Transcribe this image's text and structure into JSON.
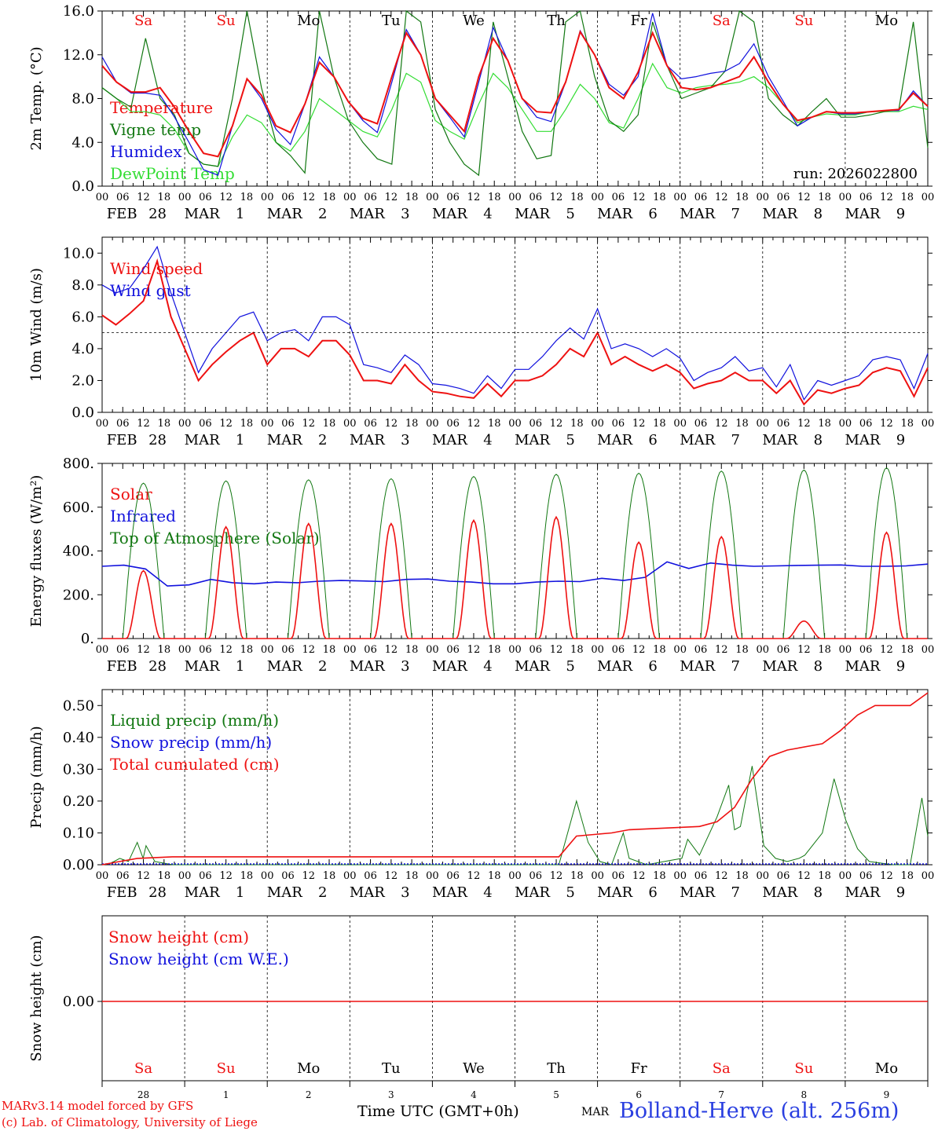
{
  "colors": {
    "red": "#ee1111",
    "green": "#117711",
    "blue": "#1111dd",
    "lightgreen": "#33dd33"
  },
  "days": [
    "Sa",
    "Su",
    "Mo",
    "Tu",
    "We",
    "Th",
    "Fr",
    "Sa",
    "Su",
    "Mo"
  ],
  "weekend_days": [
    0,
    1,
    7,
    8
  ],
  "day_axis_labels": [
    [
      "FEB",
      "28"
    ],
    [
      "MAR",
      "1"
    ],
    [
      "MAR",
      "2"
    ],
    [
      "MAR",
      "3"
    ],
    [
      "MAR",
      "4"
    ],
    [
      "MAR",
      "5"
    ],
    [
      "MAR",
      "6"
    ],
    [
      "MAR",
      "7"
    ],
    [
      "MAR",
      "8"
    ],
    [
      "MAR",
      "9"
    ]
  ],
  "hour_ticks": [
    "00",
    "06",
    "12",
    "18"
  ],
  "run_label": "run: 2026022800",
  "footer": {
    "model_line1": "MARv3.14 model forced by GFS",
    "model_line2": "(c) Lab. of Climatology, University of Liege",
    "xlabel": "Time UTC (GMT+0h)",
    "month": "MAR",
    "station": "Bolland-Herve (alt. 256m)",
    "day_numbers": [
      "28",
      "1",
      "2",
      "3",
      "4",
      "5",
      "6",
      "7",
      "8",
      "9"
    ]
  },
  "chart_data": [
    {
      "type": "line",
      "id": "temp",
      "ylabel": "2m Temp. (°C)",
      "ylim": [
        0,
        16
      ],
      "yticks": [
        "0.0",
        "4.0",
        "8.0",
        "12.0",
        "16.0"
      ],
      "series": [
        {
          "name": "Temperature",
          "color": "#ee1111",
          "values": [
            11,
            9.5,
            8.6,
            8.6,
            9,
            7.2,
            5,
            3,
            2.7,
            5.5,
            9.8,
            8.3,
            5.5,
            4.9,
            7.5,
            11.3,
            10,
            7.7,
            6.2,
            5.7,
            10,
            14,
            12,
            8,
            6.5,
            5,
            10,
            13.5,
            11.5,
            8,
            6.8,
            6.7,
            9.5,
            14.1,
            12,
            9,
            8,
            10.4,
            14,
            11,
            9,
            8.8,
            9,
            9.5,
            10,
            11.8,
            9.5,
            7.5,
            6,
            6.3,
            6.8,
            6.7,
            6.7,
            6.8,
            6.9,
            7,
            8.5,
            7.3
          ]
        },
        {
          "name": "Vigne temp",
          "color": "#117711",
          "values": [
            9,
            8,
            7.2,
            13.5,
            8,
            6.5,
            3,
            2,
            1.8,
            8,
            16,
            9,
            4,
            2.8,
            1.2,
            16,
            10,
            6,
            4,
            2.5,
            2,
            16,
            15,
            7,
            4,
            2,
            1,
            15,
            10,
            5,
            2.5,
            2.8,
            15,
            16,
            10,
            6,
            5,
            6.5,
            15,
            11,
            8,
            8.5,
            9,
            10.5,
            16,
            15,
            8,
            6.5,
            5.5,
            6.8,
            8,
            6.3,
            6.3,
            6.5,
            6.8,
            7,
            15,
            3.5
          ]
        },
        {
          "name": "Humidex",
          "color": "#1111dd",
          "values": [
            11.8,
            9.5,
            8.5,
            8.5,
            8.3,
            6.3,
            4,
            1.5,
            1,
            5.5,
            9.8,
            8,
            5.2,
            3.8,
            7.5,
            11.8,
            10,
            7.7,
            6,
            4.9,
            9.5,
            14.3,
            12,
            8,
            6.3,
            4.5,
            9.5,
            14.5,
            11.5,
            8,
            6.3,
            5.9,
            9.5,
            14.2,
            12,
            9.3,
            8.3,
            10,
            15.8,
            11,
            9.8,
            10,
            10.3,
            10.5,
            11.2,
            13,
            10,
            7.8,
            5.5,
            6.3,
            6.8,
            6.6,
            6.6,
            6.8,
            6.9,
            6.9,
            8.7,
            7.3
          ]
        },
        {
          "name": "DewPoint Temp",
          "color": "#33dd33",
          "values": [
            9,
            8,
            6.8,
            6.8,
            6.5,
            5.2,
            3,
            2,
            1.8,
            4.5,
            6.5,
            5.8,
            4,
            3.2,
            5,
            8,
            7,
            6,
            5,
            4.5,
            7,
            10.3,
            9.5,
            6,
            5,
            4.3,
            7.5,
            10.3,
            9,
            7,
            5,
            5,
            7,
            9.3,
            8,
            5.8,
            5.3,
            8,
            11.2,
            9,
            8.5,
            9,
            9.2,
            9.3,
            9.5,
            10,
            9,
            7.5,
            5.8,
            6.3,
            6.6,
            6.5,
            6.5,
            6.8,
            6.8,
            6.8,
            7.3,
            7
          ]
        }
      ]
    },
    {
      "type": "line",
      "id": "wind",
      "ylabel": "10m Wind (m/s)",
      "ylim": [
        0,
        11
      ],
      "yticks": [
        "0.0",
        "2.0",
        "4.0",
        "6.0",
        "8.0",
        "10.0"
      ],
      "ref_line": 5,
      "series": [
        {
          "name": "Wind speed",
          "color": "#ee1111",
          "values": [
            6.1,
            5.5,
            6.2,
            7,
            9.5,
            6,
            4,
            2,
            3,
            3.8,
            4.5,
            5,
            3,
            4,
            4,
            3.5,
            4.5,
            4.5,
            3.6,
            2,
            2,
            1.8,
            3,
            2,
            1.3,
            1.2,
            1,
            0.9,
            1.8,
            1,
            2,
            2,
            2.3,
            3,
            4,
            3.5,
            5,
            3,
            3.5,
            3,
            2.6,
            3,
            2.5,
            1.5,
            1.8,
            2,
            2.5,
            2,
            2,
            1.2,
            2,
            0.5,
            1.4,
            1.2,
            1.5,
            1.7,
            2.5,
            2.8,
            2.6,
            1,
            2.8
          ]
        },
        {
          "name": "Wind gust",
          "color": "#1111dd",
          "values": [
            8,
            7.5,
            7.8,
            9,
            10.4,
            7.5,
            5,
            2.5,
            4,
            5,
            6,
            6.3,
            4.5,
            5,
            5.2,
            4.5,
            6,
            6,
            5.5,
            3,
            2.8,
            2.5,
            3.6,
            3,
            1.8,
            1.7,
            1.5,
            1.2,
            2.3,
            1.5,
            2.7,
            2.7,
            3.5,
            4.5,
            5.3,
            4.6,
            6.5,
            4,
            4.3,
            4,
            3.5,
            4,
            3.4,
            2,
            2.5,
            2.8,
            3.5,
            2.6,
            2.8,
            1.6,
            3,
            0.8,
            2,
            1.7,
            2,
            2.3,
            3.3,
            3.5,
            3.3,
            1.5,
            3.7
          ]
        }
      ]
    },
    {
      "type": "line",
      "id": "energy",
      "ylabel": "Energy fluxes (W/m²)",
      "ylim": [
        0,
        800
      ],
      "yticks": [
        "0.",
        "200.",
        "400.",
        "600.",
        "800."
      ],
      "solar_peaks": [
        310,
        510,
        525,
        525,
        540,
        555,
        440,
        465,
        80,
        485
      ],
      "toa_peaks": [
        710,
        720,
        725,
        730,
        740,
        750,
        755,
        765,
        770,
        780
      ],
      "infrared": [
        330,
        335,
        318,
        240,
        245,
        270,
        255,
        250,
        258,
        255,
        262,
        265,
        263,
        260,
        270,
        272,
        262,
        258,
        250,
        250,
        258,
        262,
        260,
        275,
        265,
        280,
        350,
        320,
        345,
        335,
        330,
        332,
        334,
        335,
        336,
        330,
        330,
        332,
        340
      ],
      "series": [
        {
          "name": "Solar",
          "color": "#ee1111"
        },
        {
          "name": "Infrared",
          "color": "#1111dd"
        },
        {
          "name": "Top of Atmosphere (Solar)",
          "color": "#117711"
        }
      ]
    },
    {
      "type": "line",
      "id": "precip",
      "ylabel": "Precip (mm/h)",
      "ylim": [
        0,
        0.55
      ],
      "yticks": [
        "0.00",
        "0.10",
        "0.20",
        "0.30",
        "0.40",
        "0.50"
      ],
      "liquid": [
        [
          0,
          0
        ],
        [
          3,
          0.005
        ],
        [
          6,
          0.02
        ],
        [
          9,
          0.01
        ],
        [
          12,
          0.07
        ],
        [
          14,
          0.02
        ],
        [
          15,
          0.06
        ],
        [
          18,
          0.01
        ],
        [
          24,
          0
        ],
        [
          150,
          0
        ],
        [
          156,
          0
        ],
        [
          162,
          0.2
        ],
        [
          166,
          0.07
        ],
        [
          170,
          0.01
        ],
        [
          174,
          0.0
        ],
        [
          178,
          0.1
        ],
        [
          180,
          0.02
        ],
        [
          186,
          0
        ],
        [
          192,
          0.01
        ],
        [
          198,
          0.02
        ],
        [
          200,
          0.08
        ],
        [
          204,
          0.03
        ],
        [
          210,
          0.15
        ],
        [
          214,
          0.25
        ],
        [
          216,
          0.11
        ],
        [
          218,
          0.12
        ],
        [
          222,
          0.31
        ],
        [
          226,
          0.06
        ],
        [
          230,
          0.02
        ],
        [
          234,
          0.01
        ],
        [
          238,
          0.02
        ],
        [
          240,
          0.03
        ],
        [
          246,
          0.1
        ],
        [
          250,
          0.27
        ],
        [
          254,
          0.14
        ],
        [
          258,
          0.05
        ],
        [
          262,
          0.01
        ],
        [
          270,
          0
        ],
        [
          276,
          0
        ],
        [
          280,
          0.21
        ],
        [
          282,
          0.09
        ]
      ],
      "cumulative": [
        [
          0,
          0
        ],
        [
          6,
          0.01
        ],
        [
          12,
          0.02
        ],
        [
          24,
          0.025
        ],
        [
          156,
          0.025
        ],
        [
          162,
          0.09
        ],
        [
          168,
          0.095
        ],
        [
          174,
          0.1
        ],
        [
          180,
          0.11
        ],
        [
          204,
          0.12
        ],
        [
          210,
          0.135
        ],
        [
          216,
          0.18
        ],
        [
          222,
          0.27
        ],
        [
          228,
          0.34
        ],
        [
          234,
          0.36
        ],
        [
          246,
          0.38
        ],
        [
          252,
          0.42
        ],
        [
          258,
          0.47
        ],
        [
          264,
          0.5
        ],
        [
          276,
          0.5
        ],
        [
          282,
          0.54
        ]
      ],
      "series": [
        {
          "name": "Liquid precip (mm/h)",
          "color": "#117711"
        },
        {
          "name": "Snow precip (mm/h)",
          "color": "#1111dd"
        },
        {
          "name": "Total cumulated (cm)",
          "color": "#ee1111"
        }
      ]
    },
    {
      "type": "line",
      "id": "snow",
      "ylabel": "Snow height (cm)",
      "ylim": [
        -1,
        1
      ],
      "yticks": [
        "0.00"
      ],
      "series": [
        {
          "name": "Snow height (cm)",
          "color": "#ee1111",
          "values": [
            0,
            0
          ]
        },
        {
          "name": "Snow height (cm W.E.)",
          "color": "#1111dd"
        }
      ]
    }
  ]
}
